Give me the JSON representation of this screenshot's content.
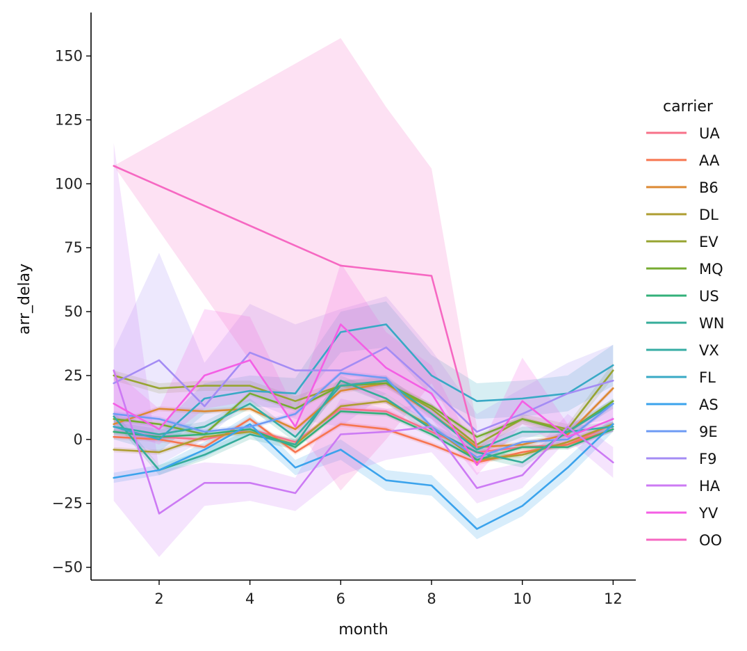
{
  "chart_data": {
    "type": "line",
    "xlabel": "month",
    "ylabel": "arr_delay",
    "xlim": [
      0.5,
      12.5
    ],
    "ylim": [
      -55,
      167
    ],
    "xticks": [
      2,
      4,
      6,
      8,
      10,
      12
    ],
    "yticks": [
      -50,
      -25,
      0,
      25,
      50,
      75,
      100,
      125,
      150
    ],
    "x": [
      1,
      2,
      3,
      4,
      5,
      6,
      7,
      8,
      9,
      10,
      11,
      12
    ],
    "grid": false,
    "legend": {
      "title": "carrier",
      "position": "right"
    },
    "series": [
      {
        "name": "UA",
        "color": "#f77189",
        "values": [
          3,
          1,
          0,
          4,
          -1,
          12,
          11,
          3,
          -5,
          -3,
          -2,
          6
        ],
        "lower": [
          2,
          0,
          -1,
          3,
          -2,
          11,
          10,
          2,
          -6,
          -4,
          -3,
          5
        ],
        "upper": [
          4,
          2,
          1,
          5,
          0,
          13,
          12,
          4,
          -4,
          -2,
          -1,
          7
        ]
      },
      {
        "name": "AA",
        "color": "#f7754f",
        "values": [
          1,
          0,
          -3,
          8,
          -5,
          6,
          4,
          -2,
          -9,
          -5,
          -2,
          4
        ],
        "lower": [
          0,
          -1,
          -4,
          7,
          -6,
          5,
          3,
          -3,
          -10,
          -6,
          -3,
          3
        ],
        "upper": [
          2,
          1,
          -2,
          9,
          -4,
          7,
          5,
          -1,
          -8,
          -4,
          -1,
          5
        ]
      },
      {
        "name": "B6",
        "color": "#dc8932",
        "values": [
          6,
          12,
          11,
          12,
          4,
          19,
          22,
          10,
          -3,
          -2,
          2,
          20
        ],
        "lower": [
          5,
          11,
          10,
          11,
          3,
          18,
          21,
          9,
          -4,
          -3,
          1,
          19
        ],
        "upper": [
          7,
          13,
          12,
          13,
          5,
          20,
          23,
          11,
          -2,
          -1,
          3,
          21
        ]
      },
      {
        "name": "DL",
        "color": "#ae9d31",
        "values": [
          -4,
          -5,
          1,
          3,
          -2,
          13,
          15,
          5,
          -8,
          -6,
          -1,
          6
        ],
        "lower": [
          -5,
          -6,
          0,
          2,
          -3,
          12,
          14,
          4,
          -9,
          -7,
          -2,
          5
        ],
        "upper": [
          -3,
          -4,
          2,
          4,
          -1,
          14,
          16,
          6,
          -7,
          -5,
          0,
          7
        ]
      },
      {
        "name": "EV",
        "color": "#97a431",
        "values": [
          25,
          20,
          21,
          21,
          15,
          21,
          22,
          12,
          -2,
          8,
          4,
          27
        ],
        "lower": [
          23,
          18,
          19,
          19,
          13,
          19,
          20,
          10,
          -4,
          6,
          2,
          24
        ],
        "upper": [
          27,
          22,
          23,
          23,
          17,
          23,
          24,
          14,
          0,
          10,
          6,
          30
        ]
      },
      {
        "name": "MQ",
        "color": "#77ab31",
        "values": [
          8,
          6,
          2,
          18,
          12,
          21,
          22,
          13,
          1,
          8,
          3,
          15
        ],
        "lower": [
          7,
          5,
          1,
          17,
          11,
          20,
          21,
          12,
          0,
          7,
          2,
          14
        ],
        "upper": [
          9,
          7,
          3,
          19,
          13,
          22,
          23,
          14,
          2,
          9,
          4,
          16
        ]
      },
      {
        "name": "US",
        "color": "#33b07a",
        "values": [
          3,
          1,
          2,
          4,
          -3,
          11,
          10,
          2,
          -8,
          -3,
          -3,
          4
        ],
        "lower": [
          2,
          0,
          1,
          3,
          -4,
          10,
          9,
          1,
          -9,
          -4,
          -4,
          3
        ],
        "upper": [
          4,
          2,
          3,
          5,
          -2,
          12,
          11,
          3,
          -7,
          -2,
          -2,
          5
        ]
      },
      {
        "name": "WN",
        "color": "#35ac9a",
        "values": [
          9,
          -12,
          -6,
          2,
          -2,
          23,
          16,
          4,
          -5,
          -9,
          3,
          14
        ],
        "lower": [
          7,
          -14,
          -8,
          0,
          -4,
          21,
          14,
          2,
          -7,
          -11,
          1,
          12
        ],
        "upper": [
          11,
          -10,
          -4,
          4,
          0,
          25,
          18,
          6,
          -3,
          -7,
          5,
          16
        ]
      },
      {
        "name": "VX",
        "color": "#36ada4",
        "values": [
          5,
          2,
          5,
          14,
          1,
          21,
          23,
          10,
          -4,
          3,
          3,
          5
        ],
        "lower": [
          3,
          0,
          3,
          12,
          -1,
          19,
          21,
          8,
          -6,
          1,
          1,
          3
        ],
        "upper": [
          7,
          4,
          7,
          16,
          3,
          23,
          25,
          12,
          -2,
          5,
          5,
          7
        ]
      },
      {
        "name": "FL",
        "color": "#38a9c5",
        "values": [
          5,
          0,
          16,
          19,
          18,
          42,
          45,
          25,
          15,
          16,
          18,
          29
        ],
        "lower": [
          0,
          -5,
          10,
          13,
          12,
          34,
          36,
          17,
          8,
          9,
          11,
          21
        ],
        "upper": [
          10,
          5,
          22,
          25,
          24,
          50,
          54,
          33,
          22,
          23,
          25,
          37
        ]
      },
      {
        "name": "AS",
        "color": "#3ba3ec",
        "values": [
          -15,
          -12,
          -4,
          6,
          -11,
          -4,
          -16,
          -18,
          -35,
          -26,
          -11,
          6
        ],
        "lower": [
          -17,
          -14,
          -7,
          2,
          -14,
          -8,
          -20,
          -22,
          -39,
          -30,
          -15,
          3
        ],
        "upper": [
          -13,
          -10,
          -1,
          10,
          -8,
          0,
          -12,
          -14,
          -31,
          -22,
          -7,
          9
        ]
      },
      {
        "name": "9E",
        "color": "#6e9bf4",
        "values": [
          10,
          8,
          3,
          5,
          10,
          26,
          24,
          5,
          -7,
          -1,
          0,
          14
        ],
        "lower": [
          9,
          7,
          2,
          4,
          9,
          25,
          23,
          4,
          -8,
          -2,
          -1,
          13
        ],
        "upper": [
          11,
          9,
          4,
          6,
          11,
          27,
          25,
          6,
          -6,
          0,
          1,
          15
        ]
      },
      {
        "name": "F9",
        "color": "#a48cf4",
        "values": [
          22,
          31,
          13,
          34,
          27,
          27,
          36,
          20,
          3,
          10,
          18,
          23
        ],
        "lower": [
          8,
          -10,
          0,
          15,
          8,
          5,
          18,
          5,
          -5,
          0,
          5,
          8
        ],
        "upper": [
          35,
          73,
          30,
          53,
          45,
          51,
          56,
          35,
          10,
          20,
          30,
          37
        ]
      },
      {
        "name": "HA",
        "color": "#cc7af4",
        "values": [
          27,
          -29,
          -17,
          -17,
          -21,
          2,
          3,
          5,
          -19,
          -14,
          5,
          -9
        ],
        "lower": [
          -24,
          -46,
          -26,
          -24,
          -28,
          -14,
          -8,
          -5,
          -25,
          -19,
          0,
          -15
        ],
        "upper": [
          116,
          -12,
          -9,
          -10,
          -15,
          16,
          12,
          14,
          -13,
          -9,
          10,
          -3
        ]
      },
      {
        "name": "YV",
        "color": "#f45fe4",
        "values": [
          14,
          4,
          25,
          31,
          5,
          45,
          28,
          18,
          -10,
          15,
          1,
          8
        ],
        "lower": [
          4,
          -2,
          12,
          15,
          1,
          22,
          14,
          8,
          -14,
          6,
          -4,
          3
        ],
        "upper": [
          27,
          12,
          51,
          48,
          11,
          69,
          42,
          29,
          -6,
          32,
          6,
          13
        ]
      },
      {
        "name": "OO",
        "color": "#f668c2",
        "values": [
          107,
          null,
          null,
          null,
          null,
          68,
          66,
          64,
          -3,
          null,
          null,
          null
        ],
        "lower": [
          107,
          null,
          null,
          null,
          null,
          -20,
          0,
          22,
          -10,
          null,
          null,
          null
        ],
        "upper": [
          107,
          null,
          null,
          null,
          null,
          157,
          130,
          106,
          5,
          null,
          null,
          null
        ]
      }
    ]
  }
}
